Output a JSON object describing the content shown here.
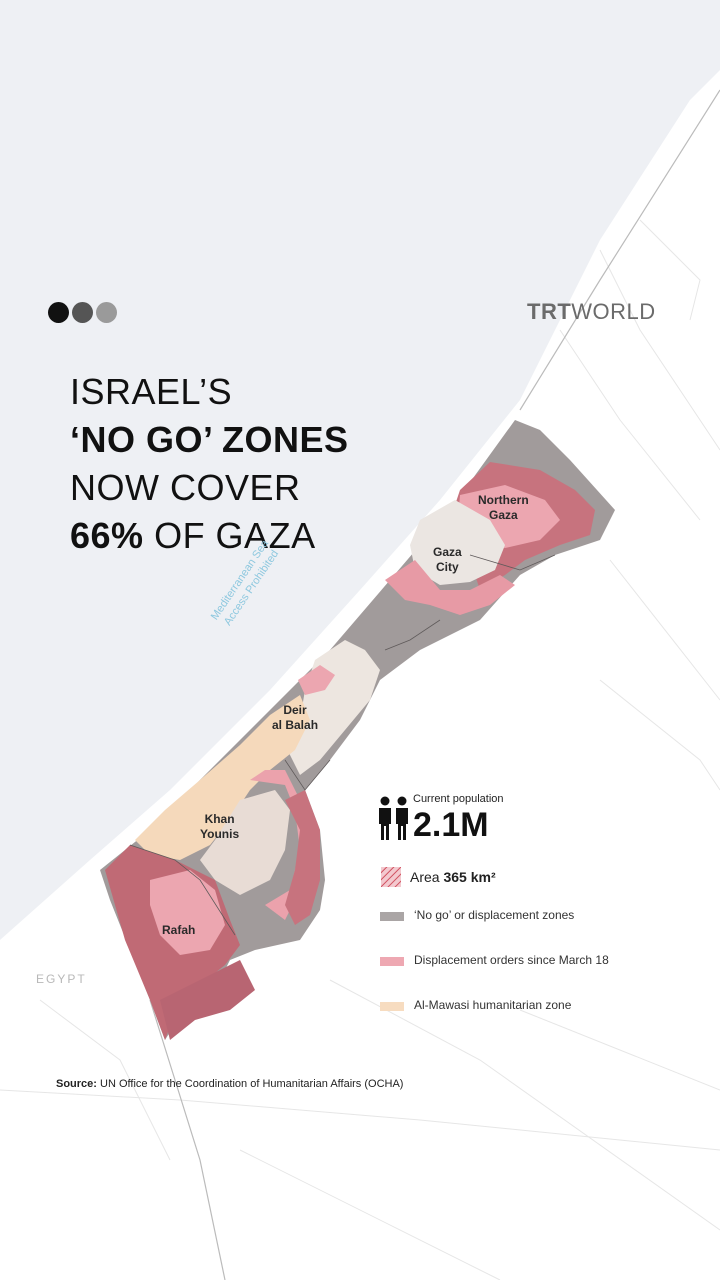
{
  "brand": {
    "trt": "TRT",
    "world": "WORLD"
  },
  "headline": {
    "line1": "ISRAEL’S",
    "line2": "‘NO GO’ ZONES",
    "line3": "NOW COVER",
    "line4_bold": "66%",
    "line4_rest": " OF GAZA"
  },
  "sea_label": {
    "line1": "Mediterranean Sea",
    "line2": "Access Prohibited"
  },
  "places": {
    "northern_gaza": {
      "line1": "Northern",
      "line2": "Gaza"
    },
    "gaza_city": {
      "line1": "Gaza",
      "line2": "City"
    },
    "deir_al_balah": {
      "line1": "Deir",
      "line2": "al Balah"
    },
    "khan_younis": {
      "line1": "Khan",
      "line2": "Younis"
    },
    "rafah": "Rafah",
    "egypt": "EGYPT"
  },
  "legend": {
    "population_label": "Current population",
    "population_value": "2.1M",
    "area_label": "Area",
    "area_value": "365 km²",
    "items": [
      {
        "label": "‘No go’ or displacement zones",
        "color": "#aaa5a5"
      },
      {
        "label": "Displacement orders since March 18",
        "color": "#eea8b2"
      },
      {
        "label": "Al-Mawasi humanitarian zone",
        "color": "#f7dcc0"
      }
    ]
  },
  "source": {
    "label": "Source:",
    "text": " UN Office for the Coordination of Humanitarian Affairs (OCHA)"
  },
  "colors": {
    "sea": "#eef0f4",
    "no_go": "#9e9898",
    "displacement": "#c97480",
    "displacement_light": "#eba6b0",
    "mawasi": "#f6dcc0",
    "urban": "#ece8e4",
    "dot1": "#111111",
    "dot2": "#555555",
    "dot3": "#9a9a9a"
  }
}
